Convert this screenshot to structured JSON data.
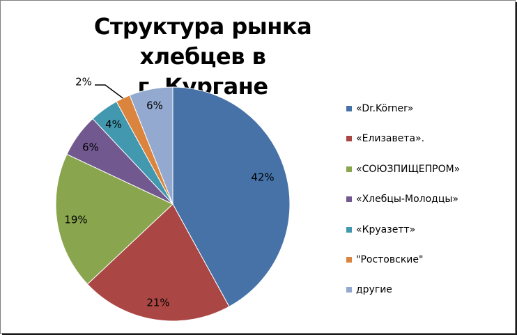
{
  "chart_data": {
    "type": "pie",
    "title_lines": [
      "Структура рынка хлебцев в",
      "г. Кургане"
    ],
    "slices": [
      {
        "label": "«Dr.Körner»",
        "value": 42,
        "text": "42%",
        "color": "#4672A8"
      },
      {
        "label": "«Елизавета».",
        "value": 21,
        "text": "21%",
        "color": "#AA4643"
      },
      {
        "label": "«СОЮЗПИЩЕПРОМ»",
        "value": 19,
        "text": "19%",
        "color": "#89A54E"
      },
      {
        "label": "«Хлебцы-Молодцы»",
        "value": 6,
        "text": "6%",
        "color": "#71588F"
      },
      {
        "label": "«Круазетт»",
        "value": 4,
        "text": "4%",
        "color": "#4198AF"
      },
      {
        "label": "\"Ростовские\"",
        "value": 2,
        "text": "2%",
        "color": "#DB843D"
      },
      {
        "label": "другие",
        "value": 6,
        "text": "6%",
        "color": "#93A9CF"
      }
    ],
    "legend_position": "right"
  }
}
